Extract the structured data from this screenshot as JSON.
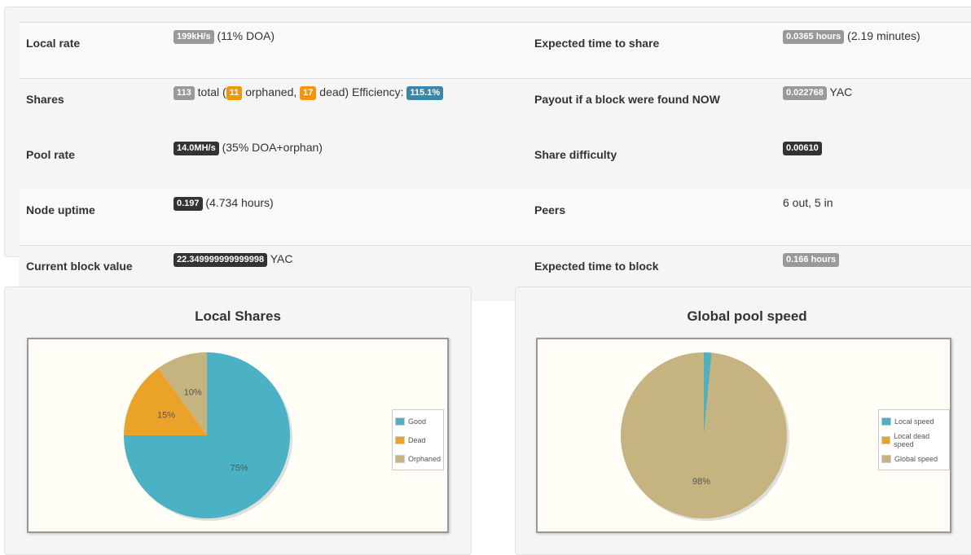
{
  "stats": {
    "local_rate": {
      "label": "Local rate",
      "badge": "199kH/s",
      "suffix": "(11% DOA)"
    },
    "expected_share": {
      "label": "Expected time to share",
      "badge": "0.0365 hours",
      "suffix": "(2.19 minutes)"
    },
    "shares": {
      "label": "Shares",
      "total": "113",
      "total_text": "total (",
      "orphaned": "11",
      "orphaned_text": "orphaned,",
      "dead": "17",
      "dead_text": "dead) Efficiency:",
      "efficiency": "115.1%"
    },
    "payout": {
      "label": "Payout if a block were found NOW",
      "badge": "0.022768",
      "suffix": "YAC"
    },
    "pool_rate": {
      "label": "Pool rate",
      "badge": "14.0MH/s",
      "suffix": "(35% DOA+orphan)"
    },
    "share_difficulty": {
      "label": "Share difficulty",
      "badge": "0.00610"
    },
    "node_uptime": {
      "label": "Node uptime",
      "badge": "0.197",
      "suffix": "(4.734 hours)"
    },
    "peers": {
      "label": "Peers",
      "value": "6 out, 5 in"
    },
    "block_value": {
      "label": "Current block value",
      "badge": "22.349999999999998",
      "suffix": "YAC"
    },
    "expected_block": {
      "label": "Expected time to block",
      "badge": "0.166 hours"
    }
  },
  "chart_data": [
    {
      "type": "pie",
      "title": "Local Shares",
      "series": [
        {
          "name": "Good",
          "value": 75,
          "label": "75%",
          "color": "#4bb2c5"
        },
        {
          "name": "Dead",
          "value": 15,
          "label": "15%",
          "color": "#eaa228"
        },
        {
          "name": "Orphaned",
          "value": 10,
          "label": "10%",
          "color": "#c5b47f"
        }
      ],
      "legend": "right"
    },
    {
      "type": "pie",
      "title": "Global pool speed",
      "series": [
        {
          "name": "Local speed",
          "value": 1.5,
          "label": "",
          "color": "#4bb2c5"
        },
        {
          "name": "Local dead speed",
          "value": 0.2,
          "label": "",
          "color": "#eaa228"
        },
        {
          "name": "Global speed",
          "value": 98.3,
          "label": "98%",
          "color": "#c5b47f"
        }
      ],
      "legend": "right"
    }
  ]
}
